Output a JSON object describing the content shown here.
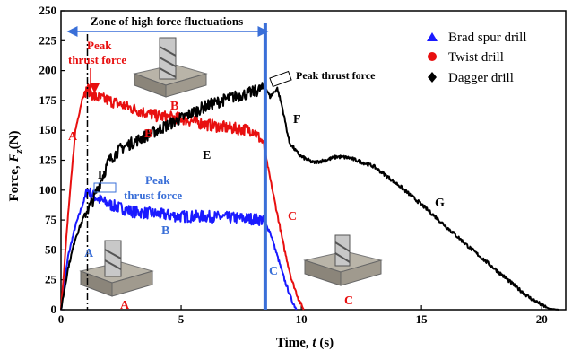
{
  "chart_data": {
    "type": "line",
    "title": "",
    "xlabel_main": "Time, ",
    "xlabel_var": "t",
    "xlabel_unit": " (s)",
    "ylabel_main": "Force, ",
    "ylabel_var": "F",
    "ylabel_sub": "z",
    "ylabel_unit": "(N)",
    "xlim": [
      0,
      21
    ],
    "ylim": [
      0,
      250
    ],
    "xticks": [
      0,
      5,
      10,
      15,
      20
    ],
    "yticks": [
      0,
      25,
      50,
      75,
      100,
      125,
      150,
      175,
      200,
      225,
      250
    ],
    "grid": false,
    "legend_position": "top-right",
    "series": [
      {
        "name": "Brad spur drill",
        "color": "#1a1aff",
        "marker": "triangle",
        "x": [
          0,
          0.3,
          0.6,
          0.9,
          1.1,
          1.3,
          1.6,
          2.0,
          2.5,
          3.0,
          4.0,
          5.0,
          6.0,
          7.0,
          8.0,
          8.4,
          8.7,
          9.0,
          9.3,
          9.6,
          9.8
        ],
        "y": [
          0,
          45,
          70,
          88,
          100,
          96,
          92,
          88,
          85,
          82,
          80,
          78,
          78,
          77,
          76,
          75,
          65,
          45,
          25,
          8,
          0
        ]
      },
      {
        "name": "Twist drill",
        "color": "#e81010",
        "marker": "circle",
        "x": [
          0,
          0.3,
          0.6,
          0.9,
          1.1,
          1.4,
          2.0,
          3.0,
          4.0,
          5.0,
          6.0,
          7.0,
          8.0,
          8.4,
          8.7,
          9.0,
          9.3,
          9.6,
          9.9,
          10.1
        ],
        "y": [
          0,
          80,
          150,
          178,
          185,
          178,
          175,
          168,
          162,
          160,
          155,
          152,
          150,
          140,
          110,
          80,
          50,
          25,
          8,
          0
        ]
      },
      {
        "name": "Dagger drill",
        "color": "#000000",
        "marker": "diamond",
        "x": [
          0,
          0.3,
          0.6,
          1.0,
          1.3,
          1.6,
          2.0,
          2.5,
          3.0,
          4.0,
          5.0,
          6.0,
          7.0,
          8.0,
          8.5,
          8.7,
          9.0,
          9.2,
          9.5,
          9.8,
          10.0,
          10.5,
          11.0,
          11.5,
          12.0,
          13.0,
          14.0,
          15.0,
          16.0,
          17.0,
          18.0,
          19.0,
          19.5,
          20.0,
          20.3,
          20.7
        ],
        "y": [
          0,
          35,
          60,
          80,
          90,
          105,
          125,
          135,
          140,
          150,
          160,
          170,
          177,
          182,
          186,
          178,
          185,
          170,
          140,
          132,
          128,
          123,
          125,
          128,
          127,
          120,
          105,
          88,
          70,
          52,
          35,
          18,
          10,
          4,
          1,
          0
        ]
      }
    ],
    "zone_line_x": 8.5,
    "dashdot_line_x": 1.1,
    "annotations": {
      "zone": "Zone of high force fluctuations",
      "peak_red_line1": "Peak",
      "peak_red_line2": "thrust force",
      "peak_black": "Peak thrust force",
      "peak_blue_line1": "Peak",
      "peak_blue_line2": "thrust force",
      "label_A": "A",
      "label_B": "B",
      "label_C": "C",
      "label_D": "D",
      "label_E": "E",
      "label_F": "F",
      "label_G": "G"
    }
  }
}
